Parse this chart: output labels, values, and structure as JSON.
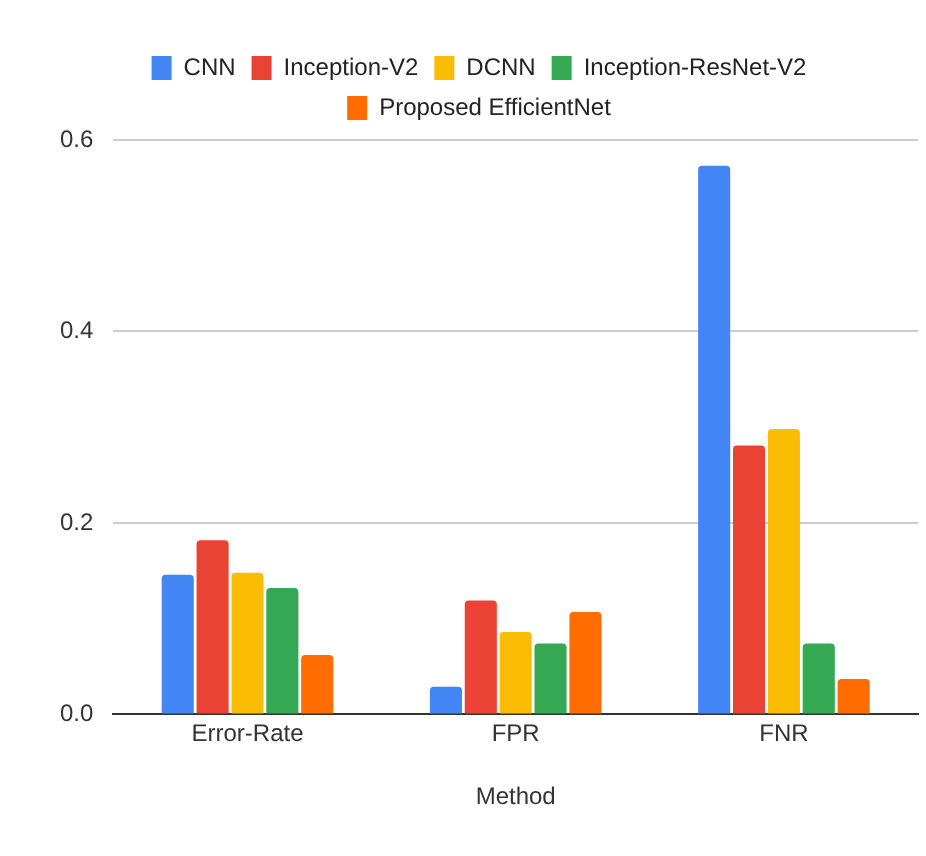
{
  "chart_data": {
    "type": "bar",
    "xlabel": "Method",
    "categories": [
      "Error-Rate",
      "FPR",
      "FNR"
    ],
    "series": [
      {
        "name": "CNN",
        "color": "#4285f4",
        "values": [
          0.146,
          0.029,
          0.573
        ]
      },
      {
        "name": "Inception-V2",
        "color": "#ea4335",
        "values": [
          0.182,
          0.119,
          0.281
        ]
      },
      {
        "name": "DCNN",
        "color": "#fbbc04",
        "values": [
          0.148,
          0.086,
          0.298
        ]
      },
      {
        "name": "Inception-ResNet-V2",
        "color": "#34a853",
        "values": [
          0.132,
          0.074,
          0.074
        ]
      },
      {
        "name": "Proposed EfficientNet",
        "color": "#ff6d01",
        "values": [
          0.062,
          0.107,
          0.037
        ]
      }
    ],
    "ylim": [
      0,
      0.6
    ],
    "yticks": [
      {
        "value": 0,
        "label": "0.0"
      },
      {
        "value": 0.2,
        "label": "0.2"
      },
      {
        "value": 0.4,
        "label": "0.4"
      },
      {
        "value": 0.6,
        "label": "0.6"
      }
    ],
    "grid": "y",
    "legend": "top"
  }
}
